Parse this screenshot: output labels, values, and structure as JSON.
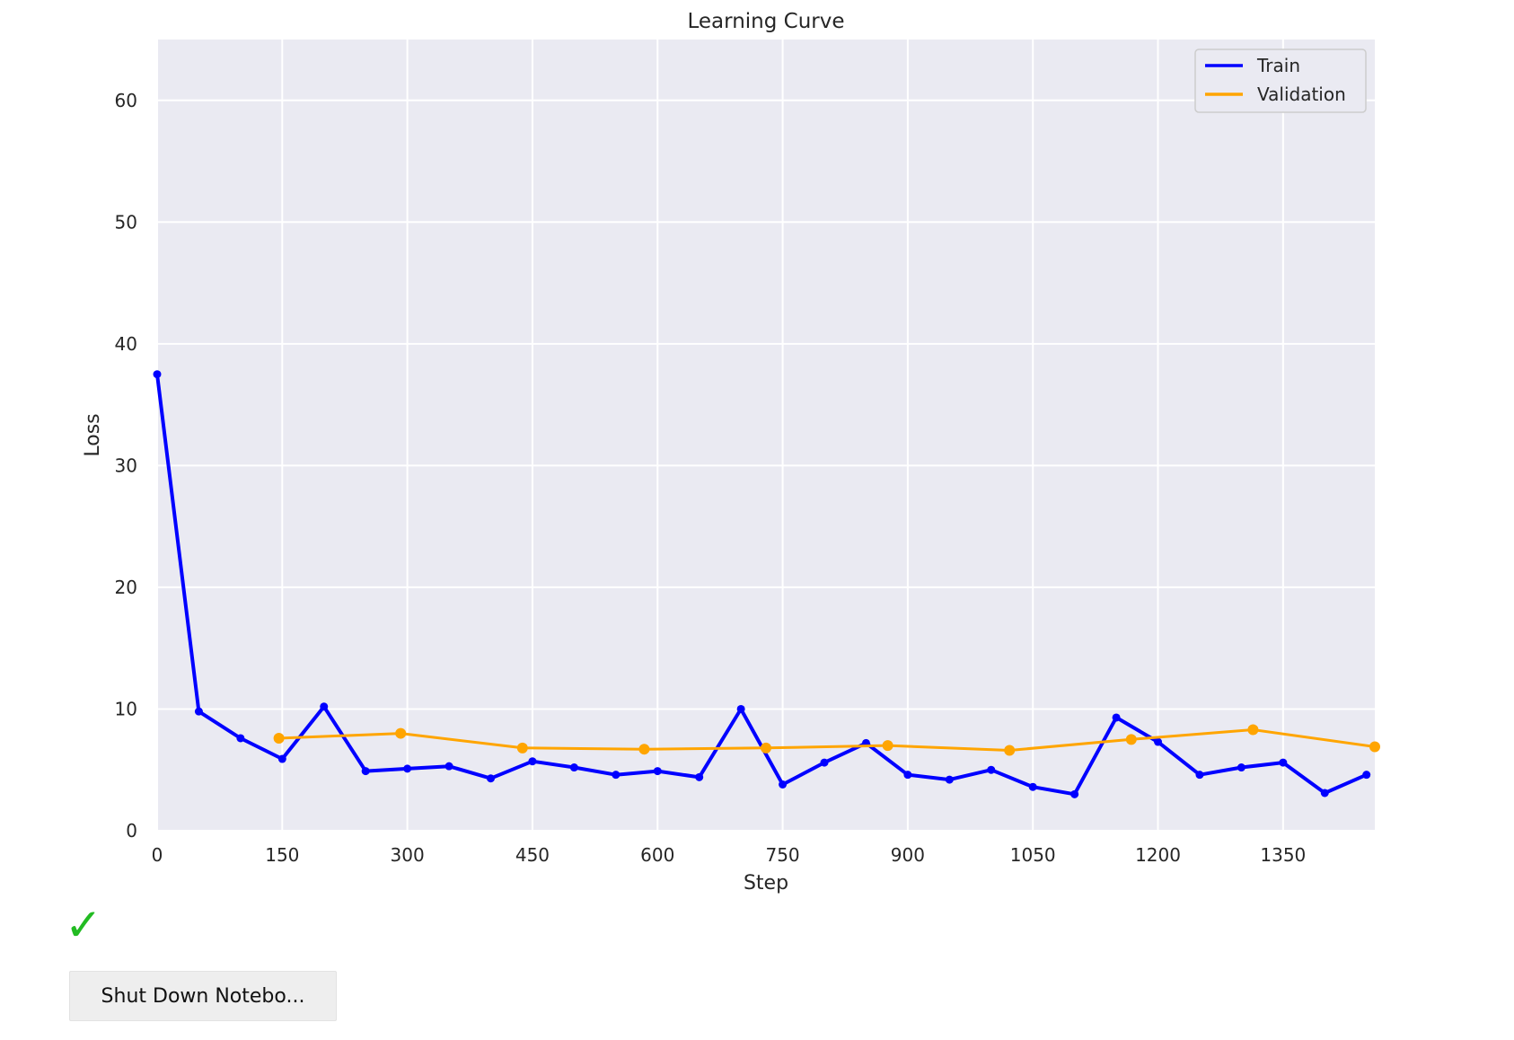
{
  "chart_data": {
    "type": "line",
    "title": "Learning Curve",
    "xlabel": "Step",
    "ylabel": "Loss",
    "xlim": [
      0,
      1460
    ],
    "ylim": [
      0,
      65
    ],
    "xticks": [
      0,
      150,
      300,
      450,
      600,
      750,
      900,
      1050,
      1200,
      1350
    ],
    "yticks": [
      0,
      10,
      20,
      30,
      40,
      50,
      60
    ],
    "grid": true,
    "legend_position": "top-right",
    "series": [
      {
        "name": "Train",
        "color": "#0000ff",
        "x": [
          0,
          50,
          100,
          150,
          200,
          250,
          300,
          350,
          400,
          450,
          500,
          550,
          600,
          650,
          700,
          750,
          800,
          850,
          900,
          950,
          1000,
          1050,
          1100,
          1150,
          1200,
          1250,
          1300,
          1350,
          1400,
          1450
        ],
        "y": [
          37.5,
          9.8,
          7.6,
          5.9,
          10.2,
          4.9,
          5.1,
          5.3,
          4.3,
          5.7,
          5.2,
          4.6,
          4.9,
          4.4,
          10.0,
          3.8,
          5.6,
          7.2,
          4.6,
          4.2,
          5.0,
          3.6,
          3.0,
          9.3,
          7.3,
          4.6,
          5.2,
          5.6,
          3.1,
          4.6
        ]
      },
      {
        "name": "Validation",
        "color": "#ffa500",
        "x": [
          146,
          292,
          438,
          584,
          730,
          876,
          1022,
          1168,
          1314,
          1460
        ],
        "y": [
          7.6,
          8.0,
          6.8,
          6.7,
          6.8,
          7.0,
          6.6,
          7.5,
          8.3,
          6.9
        ]
      }
    ]
  },
  "status": {
    "check_icon": "✓",
    "check_color": "#22bb22"
  },
  "buttons": {
    "shutdown_label": "Shut Down Notebo..."
  }
}
